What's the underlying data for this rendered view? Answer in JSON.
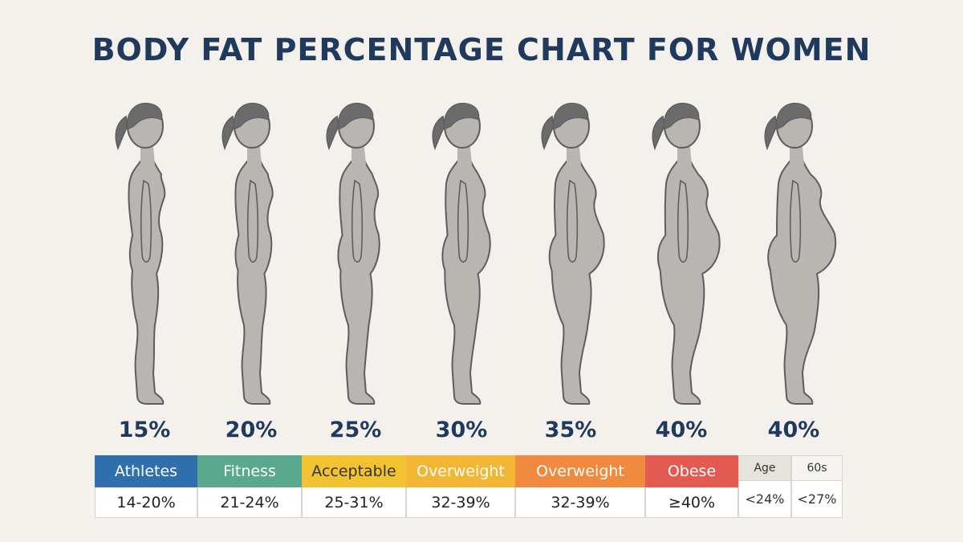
{
  "title": "BODY FAT PERCENTAGE CHART FOR WOMEN",
  "figures": [
    {
      "label": "15%",
      "belly": 0,
      "hip": 0,
      "chest": 0
    },
    {
      "label": "20%",
      "belly": 0.1,
      "hip": 0.1,
      "chest": 0.1
    },
    {
      "label": "25%",
      "belly": 0.25,
      "hip": 0.25,
      "chest": 0.2
    },
    {
      "label": "30%",
      "belly": 0.45,
      "hip": 0.4,
      "chest": 0.3
    },
    {
      "label": "35%",
      "belly": 0.65,
      "hip": 0.6,
      "chest": 0.45
    },
    {
      "label": "40%",
      "belly": 0.85,
      "hip": 0.8,
      "chest": 0.55
    },
    {
      "label": "40%",
      "belly": 1.0,
      "hip": 1.0,
      "chest": 0.65
    }
  ],
  "categories": [
    {
      "name": "Athletes",
      "range": "14-20%",
      "color": "#2f6fad"
    },
    {
      "name": "Fitness",
      "range": "21-24%",
      "color": "#5aa88d"
    },
    {
      "name": "Acceptable",
      "range": "25-31%",
      "color": "#f2c230",
      "text_color": "#333333"
    },
    {
      "name": "Overweight",
      "range": "32-39%",
      "color": "#f2b534"
    },
    {
      "name": "Overweight",
      "range": "32-39%",
      "color": "#ef8a3e"
    },
    {
      "name": "Obese",
      "range": "≥40%",
      "color": "#e35b50"
    }
  ],
  "age_table": {
    "headers": [
      "Age",
      "60s"
    ],
    "values": [
      "<24%",
      "<27%"
    ]
  },
  "colors": {
    "silhouette": "#b9b6b2",
    "outline": "#5e5e5e",
    "hair": "#6b6b6b",
    "title": "#1f3a5c"
  }
}
